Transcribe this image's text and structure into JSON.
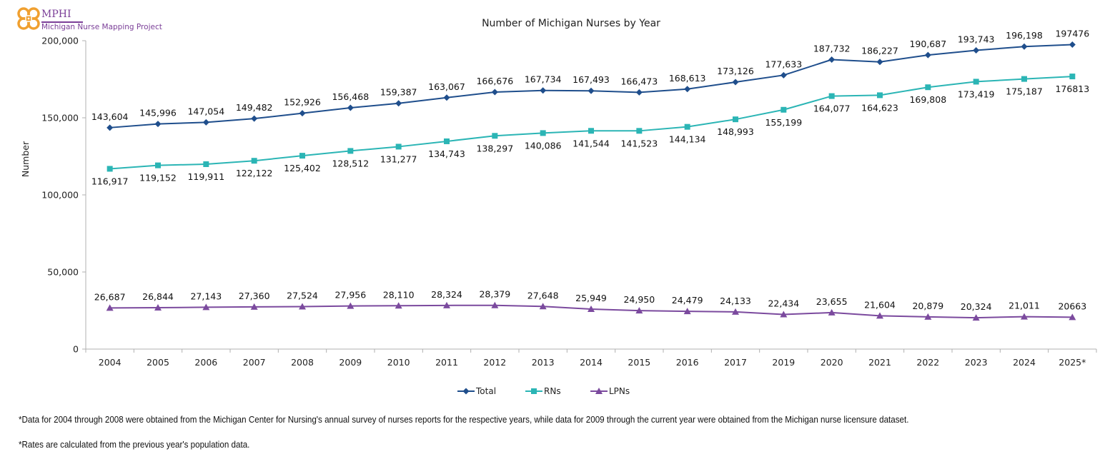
{
  "logo": {
    "org": "MPHI",
    "project": "Michigan Nurse Mapping Project",
    "colors": {
      "ring": "#F0A030",
      "text": "#7B3F98"
    }
  },
  "chart_data": {
    "type": "line",
    "title": "Number of Michigan Nurses by Year",
    "xlabel": "",
    "ylabel": "Number",
    "categories": [
      "2004",
      "2005",
      "2006",
      "2007",
      "2008",
      "2009",
      "2010",
      "2011",
      "2012",
      "2013",
      "2014",
      "2015",
      "2016",
      "2017",
      "2019",
      "2020",
      "2021",
      "2022",
      "2023",
      "2024",
      "2025*"
    ],
    "ylim": [
      0,
      200000
    ],
    "yticks": [
      0,
      50000,
      100000,
      150000,
      200000
    ],
    "ytick_labels": [
      "0",
      "50,000",
      "100,000",
      "150,000",
      "200,000"
    ],
    "grid": false,
    "legend_position": "bottom",
    "series": [
      {
        "name": "Total",
        "color": "#1F4E8C",
        "marker": "diamond",
        "label_position": "above",
        "values": [
          143604,
          145996,
          147054,
          149482,
          152926,
          156468,
          159387,
          163067,
          166676,
          167734,
          167493,
          166473,
          168613,
          173126,
          177633,
          187732,
          186227,
          190687,
          193743,
          196198,
          197476
        ],
        "labels": [
          "143,604",
          "145,996",
          "147,054",
          "149,482",
          "152,926",
          "156,468",
          "159,387",
          "163,067",
          "166,676",
          "167,734",
          "167,493",
          "166,473",
          "168,613",
          "173,126",
          "177,633",
          "187,732",
          "186,227",
          "190,687",
          "193,743",
          "196,198",
          "197476"
        ]
      },
      {
        "name": "RNs",
        "color": "#2BB5B5",
        "marker": "square",
        "label_position": "below",
        "values": [
          116917,
          119152,
          119911,
          122122,
          125402,
          128512,
          131277,
          134743,
          138297,
          140086,
          141544,
          141523,
          144134,
          148993,
          155199,
          164077,
          164623,
          169808,
          173419,
          175187,
          176813
        ],
        "labels": [
          "116,917",
          "119,152",
          "119,911",
          "122,122",
          "125,402",
          "128,512",
          "131,277",
          "134,743",
          "138,297",
          "140,086",
          "141,544",
          "141,523",
          "144,134",
          "148,993",
          "155,199",
          "164,077",
          "164,623",
          "169,808",
          "173,419",
          "175,187",
          "176813"
        ]
      },
      {
        "name": "LPNs",
        "color": "#7B4A9E",
        "marker": "triangle",
        "label_position": "above",
        "values": [
          26687,
          26844,
          27143,
          27360,
          27524,
          27956,
          28110,
          28324,
          28379,
          27648,
          25949,
          24950,
          24479,
          24133,
          22434,
          23655,
          21604,
          20879,
          20324,
          21011,
          20663
        ],
        "labels": [
          "26,687",
          "26,844",
          "27,143",
          "27,360",
          "27,524",
          "27,956",
          "28,110",
          "28,324",
          "28,379",
          "27,648",
          "25,949",
          "24,950",
          "24,479",
          "24,133",
          "22,434",
          "23,655",
          "21,604",
          "20,879",
          "20,324",
          "21,011",
          "20663"
        ]
      }
    ]
  },
  "footnotes": [
    "*Data for 2004 through 2008 were obtained from the Michigan Center for Nursing's annual survey of nurses reports for the respective years, while data for 2009 through the current year were obtained from the Michigan nurse licensure dataset.",
    "*Rates are calculated from the previous year's population data."
  ]
}
